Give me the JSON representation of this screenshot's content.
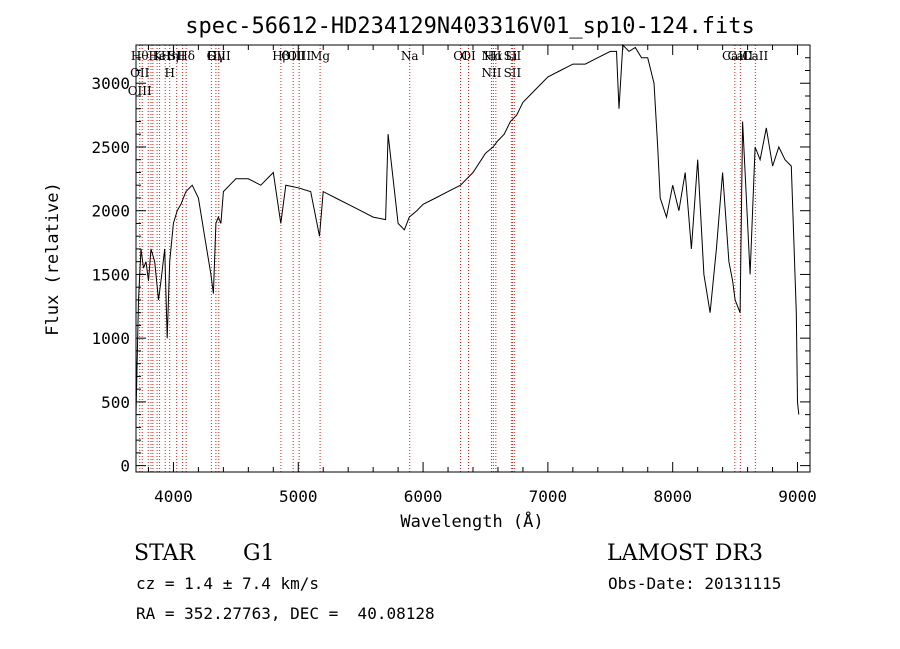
{
  "chart_data": {
    "type": "line",
    "title": "spec-56612-HD234129N403316V01_sp10-124.fits",
    "xlabel": "Wavelength (Å)",
    "ylabel": "Flux (relative)",
    "xlim": [
      3700,
      9100
    ],
    "ylim": [
      -50,
      3300
    ],
    "xticks": [
      4000,
      5000,
      6000,
      7000,
      8000,
      9000
    ],
    "yticks": [
      0,
      500,
      1000,
      1500,
      2000,
      2500,
      3000
    ],
    "grid": false,
    "series": [
      {
        "x": [
          3700,
          3720,
          3740,
          3760,
          3780,
          3800,
          3820,
          3850,
          3880,
          3900,
          3930,
          3950,
          3970,
          4000,
          4030,
          4060,
          4100,
          4150,
          4200,
          4250,
          4300,
          4320,
          4340,
          4360,
          4380,
          4400,
          4450,
          4500,
          4600,
          4700,
          4800,
          4860,
          4900,
          5000,
          5100,
          5170,
          5200,
          5300,
          5400,
          5500,
          5600,
          5700,
          5720,
          5800,
          5850,
          5890,
          5950,
          6000,
          6100,
          6200,
          6300,
          6400,
          6500,
          6560,
          6600,
          6650,
          6700,
          6750,
          6800,
          6900,
          7000,
          7100,
          7200,
          7300,
          7400,
          7500,
          7550,
          7570,
          7600,
          7650,
          7700,
          7750,
          7800,
          7850,
          7880,
          7900,
          7950,
          8000,
          8050,
          8100,
          8150,
          8200,
          8250,
          8300,
          8350,
          8400,
          8450,
          8480,
          8500,
          8540,
          8560,
          8600,
          8620,
          8660,
          8700,
          8750,
          8800,
          8850,
          8900,
          8950,
          8990,
          9000,
          9010
        ],
        "y": [
          400,
          1300,
          1700,
          1550,
          1600,
          1450,
          1700,
          1600,
          1300,
          1450,
          1700,
          1000,
          1600,
          1900,
          2000,
          2050,
          2150,
          2200,
          2100,
          1800,
          1500,
          1350,
          1900,
          1950,
          1900,
          2150,
          2200,
          2250,
          2250,
          2200,
          2300,
          1900,
          2200,
          2180,
          2150,
          1800,
          2150,
          2100,
          2050,
          2000,
          1950,
          1930,
          2600,
          1900,
          1850,
          1950,
          2000,
          2050,
          2100,
          2150,
          2200,
          2300,
          2450,
          2500,
          2550,
          2600,
          2700,
          2750,
          2850,
          2950,
          3050,
          3100,
          3150,
          3150,
          3200,
          3250,
          3250,
          2800,
          3300,
          3250,
          3280,
          3200,
          3200,
          3000,
          2500,
          2100,
          1950,
          2200,
          2000,
          2300,
          1700,
          2400,
          1500,
          1200,
          1700,
          2300,
          1600,
          1450,
          1300,
          1200,
          2700,
          1900,
          1500,
          2500,
          2400,
          2650,
          2350,
          2500,
          2400,
          2350,
          1200,
          500,
          400
        ]
      }
    ],
    "lines": [
      {
        "x": 3730,
        "names": [
          "Hθ",
          "OII",
          "OIII"
        ]
      },
      {
        "x": 3750,
        "names": []
      },
      {
        "x": 3798,
        "names": []
      },
      {
        "x": 3820,
        "names": []
      },
      {
        "x": 3835,
        "names": []
      },
      {
        "x": 3869,
        "names": [
          "K"
        ]
      },
      {
        "x": 3889,
        "names": [
          "HeI"
        ]
      },
      {
        "x": 3934,
        "names": []
      },
      {
        "x": 3970,
        "names": [
          "Hη",
          "H"
        ]
      },
      {
        "x": 4026,
        "names": [
          "SII"
        ]
      },
      {
        "x": 4072,
        "names": []
      },
      {
        "x": 4102,
        "names": [
          "Hδ"
        ]
      },
      {
        "x": 4304,
        "names": [
          "G"
        ]
      },
      {
        "x": 4340,
        "names": [
          "Hγ"
        ]
      },
      {
        "x": 4363,
        "names": [
          "OIII"
        ]
      },
      {
        "x": 4861,
        "names": [
          "Hβ"
        ]
      },
      {
        "x": 4959,
        "names": [
          "OIII"
        ]
      },
      {
        "x": 5007,
        "names": [
          "OIII"
        ]
      },
      {
        "x": 5175,
        "names": [
          "Mg"
        ]
      },
      {
        "x": 5893,
        "names": [
          "Na"
        ]
      },
      {
        "x": 6300,
        "names": [
          "OI"
        ]
      },
      {
        "x": 6364,
        "names": [
          "OI"
        ]
      },
      {
        "x": 6548,
        "names": [
          "NII",
          "NII"
        ]
      },
      {
        "x": 6563,
        "names": [
          "Hα"
        ]
      },
      {
        "x": 6583,
        "names": []
      },
      {
        "x": 6707,
        "names": [
          "Li"
        ]
      },
      {
        "x": 6716,
        "names": [
          "SII",
          "SII"
        ]
      },
      {
        "x": 6731,
        "names": []
      },
      {
        "x": 8498,
        "names": [
          "CaII"
        ]
      },
      {
        "x": 8542,
        "names": [
          "CaII"
        ]
      },
      {
        "x": 8662,
        "names": [
          "CaII"
        ]
      }
    ]
  },
  "info": {
    "object_class": "STAR",
    "subclass": "G1",
    "survey": "LAMOST DR3",
    "velocity": "cz = 1.4 ± 7.4 km/s",
    "obs_date": "Obs-Date: 20131115",
    "coords": "RA = 352.27763, DEC =  40.08128"
  }
}
